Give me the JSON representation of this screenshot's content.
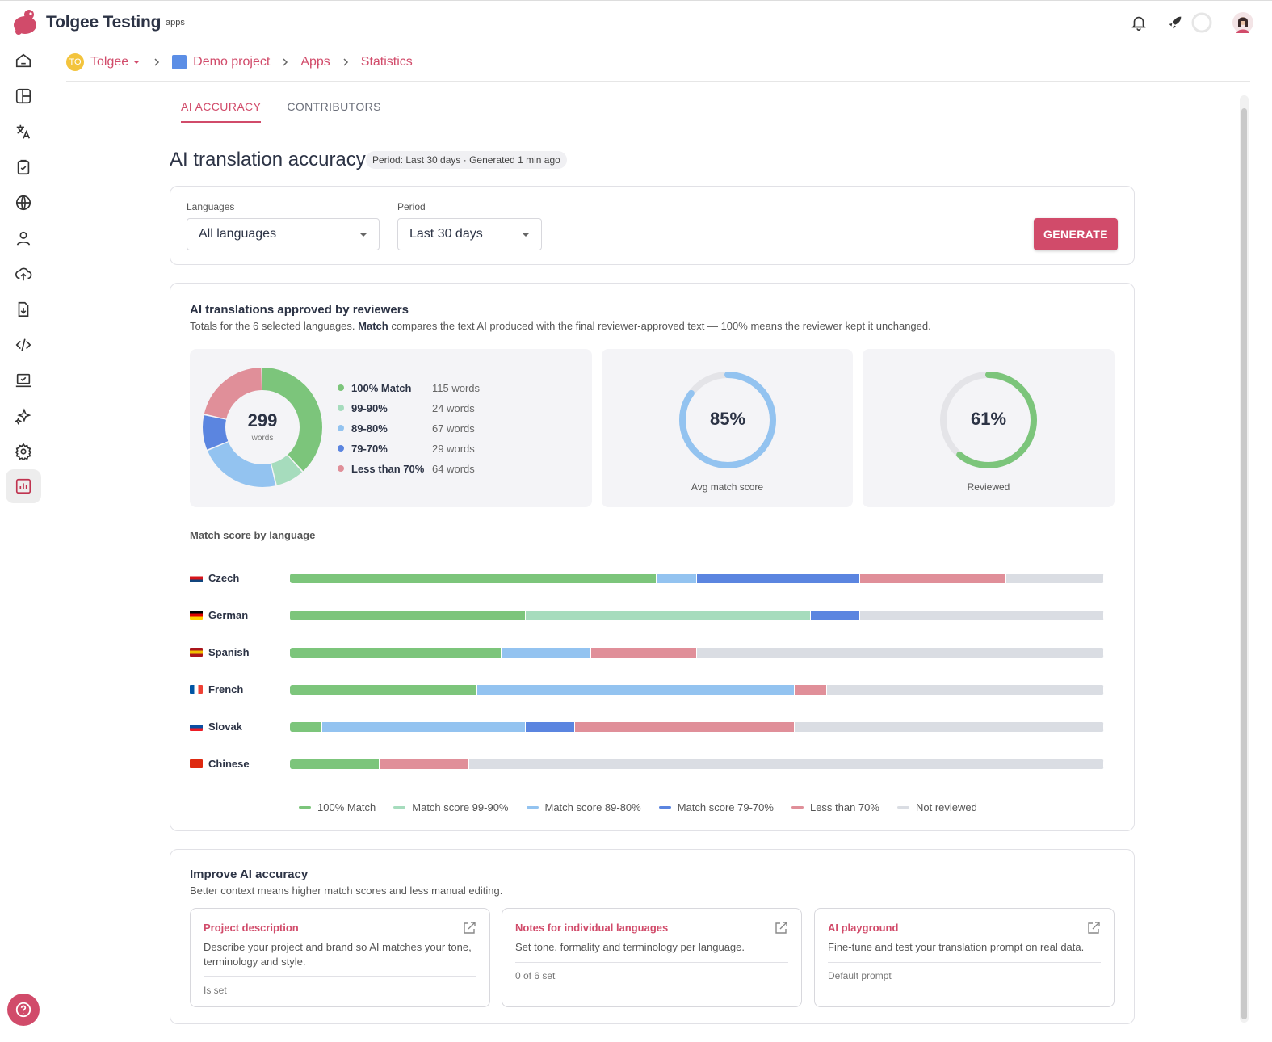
{
  "app": {
    "name": "Tolgee Testing",
    "subtitle": "apps"
  },
  "breadcrumb": {
    "org_initials": "TO",
    "org": "Tolgee",
    "project": "Demo project",
    "section": "Apps",
    "current": "Statistics"
  },
  "tabs": [
    {
      "label": "AI ACCURACY",
      "active": true
    },
    {
      "label": "CONTRIBUTORS",
      "active": false
    }
  ],
  "page": {
    "title": "AI translation accuracy",
    "period_chip": "Period: Last 30 days · Generated 1 min ago"
  },
  "filters": {
    "languages_label": "Languages",
    "languages_value": "All languages",
    "period_label": "Period",
    "period_value": "Last 30 days",
    "generate_label": "GENERATE"
  },
  "approved": {
    "title": "AI translations approved by reviewers",
    "desc_prefix": "Totals for the 6 selected languages. ",
    "desc_bold": "Match",
    "desc_suffix": " compares the text AI produced with the final reviewer-approved text — 100% means the reviewer kept it unchanged.",
    "total": "299",
    "total_unit": "words",
    "avg_match_value": "85%",
    "avg_match_label": "Avg match score",
    "avg_match_fraction": 0.85,
    "reviewed_value": "61%",
    "reviewed_label": "Reviewed",
    "reviewed_fraction": 0.61
  },
  "chart_data": [
    {
      "type": "pie",
      "title": "",
      "categories": [
        "100% Match",
        "99-90%",
        "89-80%",
        "79-70%",
        "Less than 70%"
      ],
      "values": [
        115,
        24,
        67,
        29,
        64
      ],
      "value_labels": [
        "115 words",
        "24 words",
        "67 words",
        "29 words",
        "64 words"
      ],
      "colors": [
        "#7cc57b",
        "#a6dcbd",
        "#93c3f0",
        "#5b85e0",
        "#e08f99"
      ]
    },
    {
      "type": "bar",
      "orientation": "horizontal-stacked",
      "title": "Match score by language",
      "categories": [
        "Czech",
        "German",
        "Spanish",
        "French",
        "Slovak",
        "Chinese"
      ],
      "series": [
        {
          "name": "100% Match",
          "color": "#7cc57b",
          "values": [
            45,
            29,
            26,
            23,
            4,
            11
          ]
        },
        {
          "name": "Match score 99-90%",
          "color": "#a6dcbd",
          "values": [
            0,
            35,
            0,
            0,
            0,
            0
          ]
        },
        {
          "name": "Match score 89-80%",
          "color": "#93c3f0",
          "values": [
            5,
            0,
            11,
            39,
            25,
            0
          ]
        },
        {
          "name": "Match score 79-70%",
          "color": "#5b85e0",
          "values": [
            20,
            6,
            0,
            0,
            6,
            0
          ]
        },
        {
          "name": "Less than 70%",
          "color": "#e08f99",
          "values": [
            18,
            0,
            13,
            4,
            27,
            11
          ]
        },
        {
          "name": "Not reviewed",
          "color": "#dadde3",
          "values": [
            12,
            30,
            50,
            34,
            38,
            78
          ]
        }
      ],
      "unit": "%"
    }
  ],
  "flags": {
    "Czech": [
      "#ffffff",
      "#d7141a",
      "#11457e"
    ],
    "German": [
      "#000000",
      "#dd0000",
      "#ffce00"
    ],
    "Spanish": [
      "#aa151b",
      "#f1bf00",
      "#aa151b"
    ],
    "French": [
      "#0055a4",
      "#ffffff",
      "#ef4135"
    ],
    "Slovak": [
      "#ffffff",
      "#0b4ea2",
      "#ee1c25"
    ],
    "Chinese": [
      "#de2910",
      "#de2910",
      "#de2910"
    ]
  },
  "improve": {
    "title": "Improve AI accuracy",
    "desc": "Better context means higher match scores and less manual editing.",
    "cards": [
      {
        "title": "Project description",
        "desc": "Describe your project and brand so AI matches your tone, terminology and style.",
        "status": "Is set"
      },
      {
        "title": "Notes for individual languages",
        "desc": "Set tone, formality and terminology per language.",
        "status": "0 of 6 set"
      },
      {
        "title": "AI playground",
        "desc": "Fine-tune and test your translation prompt on real data.",
        "status": "Default prompt"
      }
    ]
  },
  "colors": {
    "accent": "#d14b6a"
  }
}
